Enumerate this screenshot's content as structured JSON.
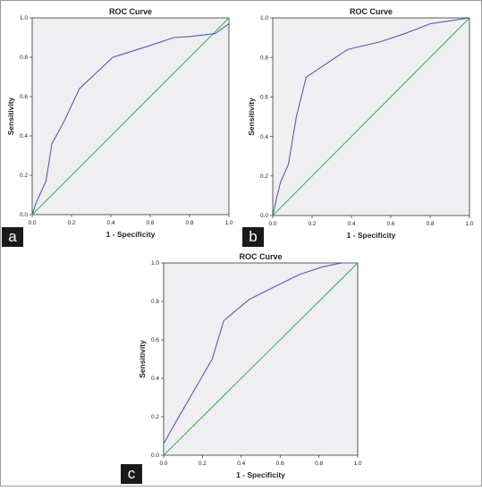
{
  "chart_data": [
    {
      "panel": "a",
      "type": "line",
      "title": "ROC Curve",
      "xlabel": "1 - Specificity",
      "ylabel": "Sensitivity",
      "xlim": [
        0,
        1
      ],
      "ylim": [
        0,
        1
      ],
      "xticks": [
        "0.0",
        "0.2",
        "0.4",
        "0.6",
        "0.8",
        "1.0"
      ],
      "yticks": [
        "0.0",
        "0.2",
        "0.4",
        "0.6",
        "0.8",
        "1.0"
      ],
      "series": [
        {
          "color": "#5a5ab5",
          "x": [
            0,
            0.02,
            0.07,
            0.1,
            0.16,
            0.24,
            0.41,
            0.6,
            0.72,
            0.8,
            0.93,
            1.0
          ],
          "y": [
            0,
            0.06,
            0.17,
            0.36,
            0.47,
            0.64,
            0.8,
            0.86,
            0.9,
            0.905,
            0.92,
            0.97
          ]
        },
        {
          "color": "#3db35a",
          "x": [
            0,
            1
          ],
          "y": [
            0,
            1
          ]
        }
      ]
    },
    {
      "panel": "b",
      "type": "line",
      "title": "ROC Curve",
      "xlabel": "1 - Specificity",
      "ylabel": "Sensitivity",
      "xlim": [
        0,
        1
      ],
      "ylim": [
        0,
        1
      ],
      "xticks": [
        "0.0",
        "0.2",
        "0.4",
        "0.6",
        "0.8",
        "1.0"
      ],
      "yticks": [
        "0.0",
        "0.2",
        "0.4",
        "0.6",
        "0.8",
        "1.0"
      ],
      "series": [
        {
          "color": "#5a5ab5",
          "x": [
            0,
            0.02,
            0.04,
            0.08,
            0.12,
            0.17,
            0.38,
            0.55,
            0.67,
            0.8,
            0.9,
            1.0
          ],
          "y": [
            0,
            0.09,
            0.17,
            0.26,
            0.5,
            0.7,
            0.84,
            0.88,
            0.92,
            0.97,
            0.985,
            1.0
          ]
        },
        {
          "color": "#3db35a",
          "x": [
            0,
            1
          ],
          "y": [
            0,
            1
          ]
        }
      ]
    },
    {
      "panel": "c",
      "type": "line",
      "title": "ROC Curve",
      "xlabel": "1 - Specificity",
      "ylabel": "Sensitivity",
      "xlim": [
        0,
        1
      ],
      "ylim": [
        0,
        1
      ],
      "xticks": [
        "0.0",
        "0.2",
        "0.4",
        "0.6",
        "0.8",
        "1.0"
      ],
      "yticks": [
        "0.0",
        "0.2",
        "0.4",
        "0.6",
        "0.8",
        "1.0"
      ],
      "series": [
        {
          "color": "#5a5ab5",
          "x": [
            0,
            0.05,
            0.25,
            0.31,
            0.44,
            0.56,
            0.7,
            0.82,
            0.92,
            1.0
          ],
          "y": [
            0.06,
            0.15,
            0.5,
            0.7,
            0.81,
            0.87,
            0.94,
            0.98,
            1.0,
            1.0
          ]
        },
        {
          "color": "#3db35a",
          "x": [
            0,
            1
          ],
          "y": [
            0,
            1
          ]
        }
      ]
    }
  ]
}
